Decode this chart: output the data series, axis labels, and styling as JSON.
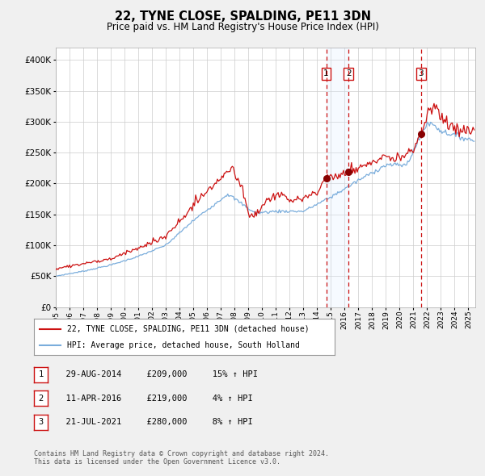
{
  "title": "22, TYNE CLOSE, SPALDING, PE11 3DN",
  "subtitle": "Price paid vs. HM Land Registry's House Price Index (HPI)",
  "footer": "Contains HM Land Registry data © Crown copyright and database right 2024.\nThis data is licensed under the Open Government Licence v3.0.",
  "legend_line1": "22, TYNE CLOSE, SPALDING, PE11 3DN (detached house)",
  "legend_line2": "HPI: Average price, detached house, South Holland",
  "transactions": [
    {
      "num": 1,
      "date": "29-AUG-2014",
      "price": 209000,
      "pct": "15%",
      "dir": "↑"
    },
    {
      "num": 2,
      "date": "11-APR-2016",
      "price": 219000,
      "pct": "4%",
      "dir": "↑"
    },
    {
      "num": 3,
      "date": "21-JUL-2021",
      "price": 280000,
      "pct": "8%",
      "dir": "↑"
    }
  ],
  "transaction_dates_decimal": [
    2014.66,
    2016.28,
    2021.55
  ],
  "hpi_color": "#7aaddc",
  "house_color": "#cc1111",
  "vline_color": "#cc1111",
  "shade_color": "#ddeeff",
  "dot_color": "#880000",
  "background_color": "#f0f0f0",
  "plot_bg_color": "#ffffff",
  "grid_color": "#cccccc",
  "ylim": [
    0,
    420000
  ],
  "yticks": [
    0,
    50000,
    100000,
    150000,
    200000,
    250000,
    300000,
    350000,
    400000
  ],
  "xstart": 1995.0,
  "xend": 2025.5
}
